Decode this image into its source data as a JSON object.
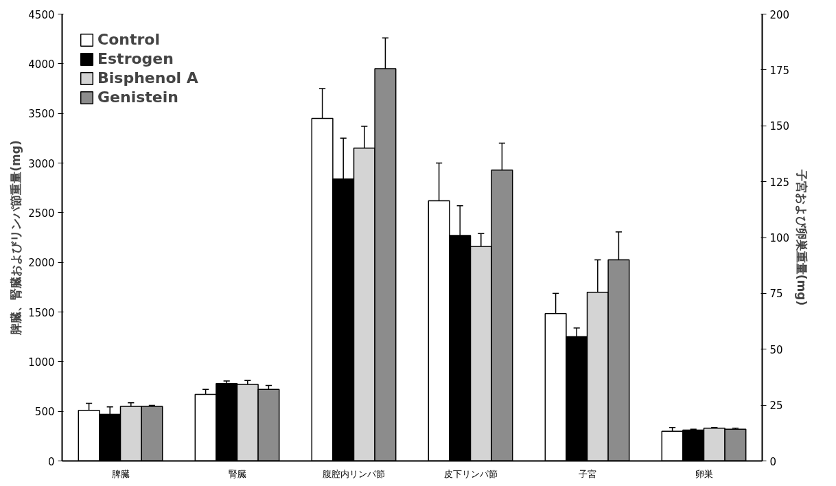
{
  "chart_data": {
    "type": "bar",
    "categories": [
      "脾臓",
      "腎臓",
      "腹腔内リンパ節",
      "皮下リンパ節",
      "子宮",
      "卵巣"
    ],
    "ylabel": "脾臓、腎臓およびリンパ節重量(mg)",
    "y2label": "子宮および卵巣重量(mg)",
    "ylim": [
      0,
      4500
    ],
    "yticks": [
      0,
      500,
      1000,
      1500,
      2000,
      2500,
      3000,
      3500,
      4000,
      4500
    ],
    "y2lim": [
      0,
      200
    ],
    "y2ticks": [
      0,
      25,
      50,
      75,
      100,
      125,
      150,
      175,
      200
    ],
    "legend": "top left",
    "grid": false,
    "series": [
      {
        "name": "Control",
        "color": "#ffffff",
        "values": [
          510,
          670,
          3450,
          2620,
          null,
          null
        ],
        "errors": [
          [
            510,
            580
          ],
          [
            670,
            720
          ],
          [
            3450,
            3750
          ],
          [
            2620,
            3000
          ],
          null,
          null
        ]
      },
      {
        "name": "Estrogen",
        "color": "#000000",
        "values": [
          470,
          780,
          2840,
          2270,
          null,
          null
        ],
        "errors": [
          [
            470,
            545
          ],
          [
            780,
            805
          ],
          [
            2840,
            3250
          ],
          [
            2270,
            2570
          ],
          null,
          null
        ]
      },
      {
        "name": "Bisphenol A",
        "color": "#d4d4d4",
        "values": [
          550,
          770,
          3150,
          2160,
          null,
          null
        ],
        "errors": [
          [
            550,
            585
          ],
          [
            770,
            810
          ],
          [
            3150,
            3370
          ],
          [
            2160,
            2290
          ],
          null,
          null
        ]
      },
      {
        "name": "Genistein",
        "color": "#8c8c8c",
        "values": [
          550,
          720,
          3950,
          2930,
          null,
          null
        ],
        "errors": [
          [
            550,
            560
          ],
          [
            720,
            760
          ],
          [
            3950,
            4260
          ],
          [
            2930,
            3200
          ],
          null,
          null
        ]
      },
      {
        "axis": "y2",
        "color": "#ffffff",
        "values": [
          null,
          null,
          null,
          null,
          66,
          13.3
        ],
        "errors": [
          null,
          null,
          null,
          null,
          [
            66,
            75
          ],
          [
            13.3,
            15
          ]
        ]
      },
      {
        "axis": "y2",
        "color": "#000000",
        "values": [
          null,
          null,
          null,
          null,
          55.6,
          13.8
        ],
        "errors": [
          null,
          null,
          null,
          null,
          [
            55.6,
            59.5
          ],
          [
            13.8,
            14.2
          ]
        ]
      },
      {
        "axis": "y2",
        "color": "#d4d4d4",
        "values": [
          null,
          null,
          null,
          null,
          75.5,
          14.7
        ],
        "errors": [
          null,
          null,
          null,
          null,
          [
            75.5,
            90
          ],
          [
            14.7,
            15
          ]
        ]
      },
      {
        "axis": "y2",
        "color": "#8c8c8c",
        "values": [
          null,
          null,
          null,
          null,
          90,
          14.2
        ],
        "errors": [
          null,
          null,
          null,
          null,
          [
            90,
            102.5
          ],
          [
            14.2,
            14.7
          ]
        ]
      }
    ]
  }
}
